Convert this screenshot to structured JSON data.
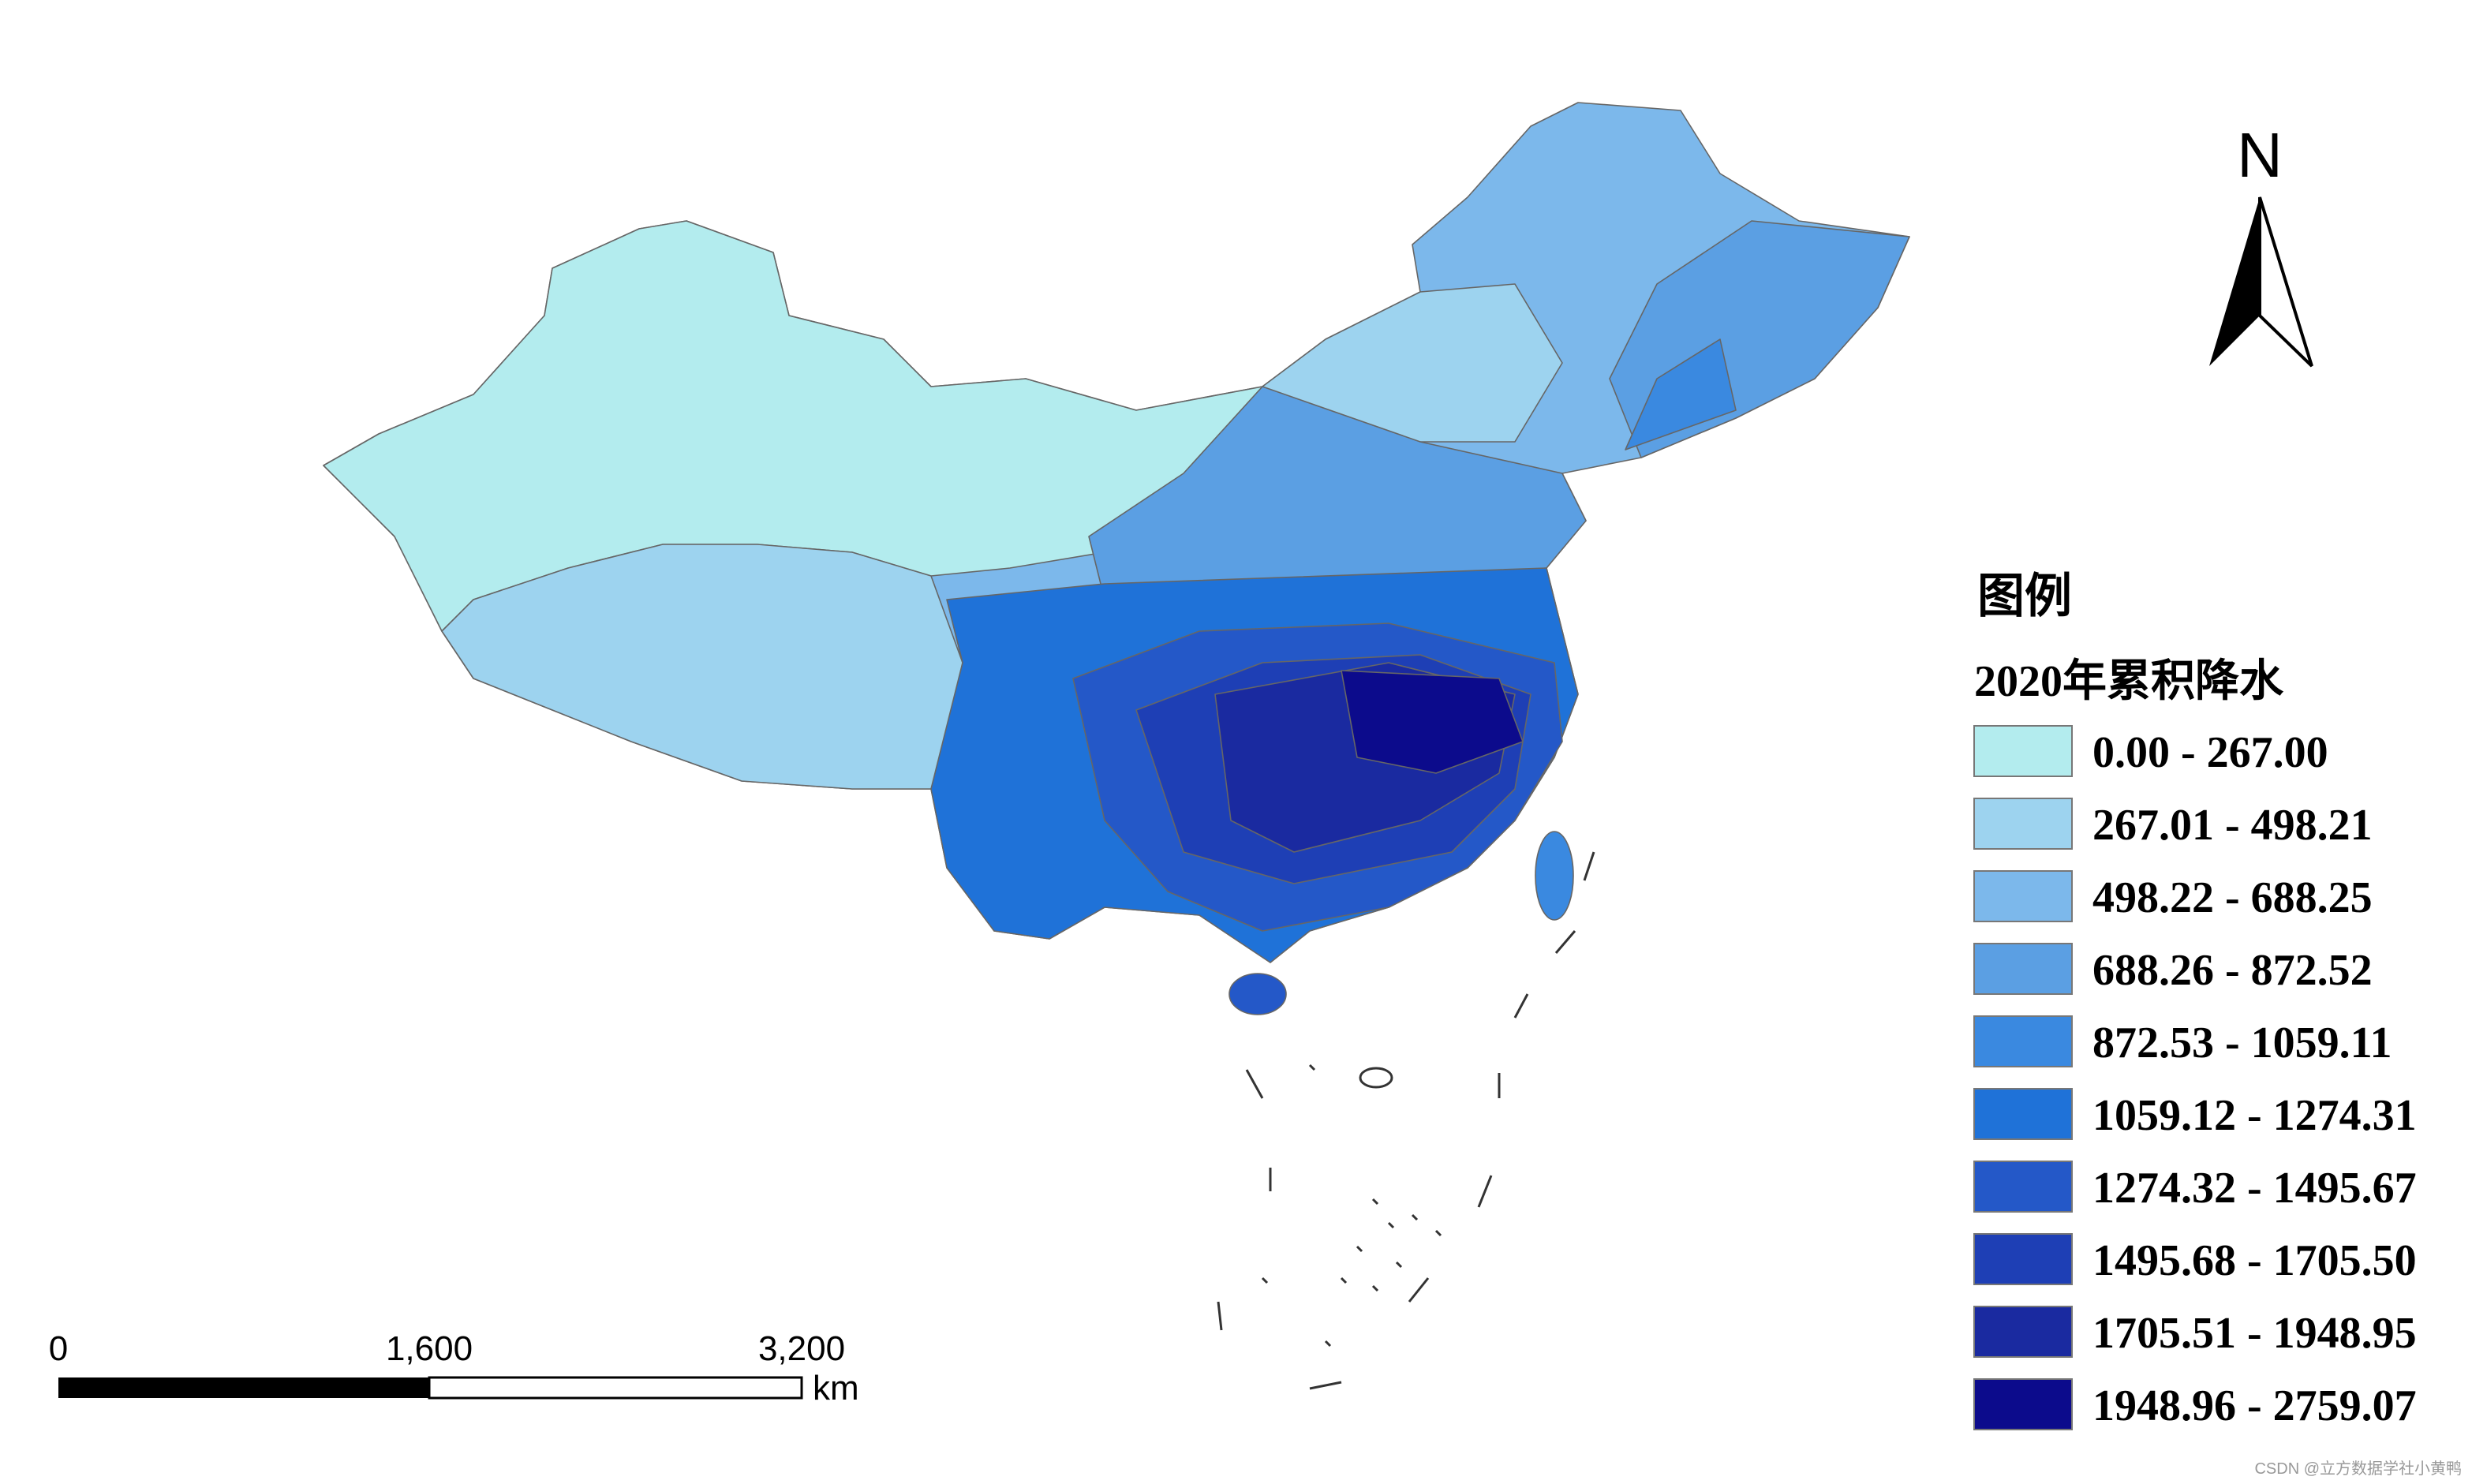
{
  "map": {
    "north": "N",
    "scale_bar": {
      "labels": [
        "0",
        "1,600",
        "3,200"
      ],
      "unit": "km"
    },
    "legend": {
      "title": "图例",
      "subtitle": "2020年累积降水",
      "items": [
        {
          "label": "0.00 - 267.00",
          "color": "#b3ecee"
        },
        {
          "label": "267.01 - 498.21",
          "color": "#9dd3ef"
        },
        {
          "label": "498.22 - 688.25",
          "color": "#7cb8eb"
        },
        {
          "label": "688.26 - 872.52",
          "color": "#5b9fe3"
        },
        {
          "label": "872.53 - 1059.11",
          "color": "#3a89e0"
        },
        {
          "label": "1059.12 - 1274.31",
          "color": "#1f72d8"
        },
        {
          "label": "1274.32 - 1495.67",
          "color": "#2458c8"
        },
        {
          "label": "1495.68 - 1705.50",
          "color": "#1e3fb5"
        },
        {
          "label": "1705.51 - 1948.95",
          "color": "#1a2aa0"
        },
        {
          "label": "1948.96 - 2759.07",
          "color": "#0c0b8c"
        }
      ]
    },
    "watermark": "CSDN @立方数据学社小黄鸭"
  }
}
